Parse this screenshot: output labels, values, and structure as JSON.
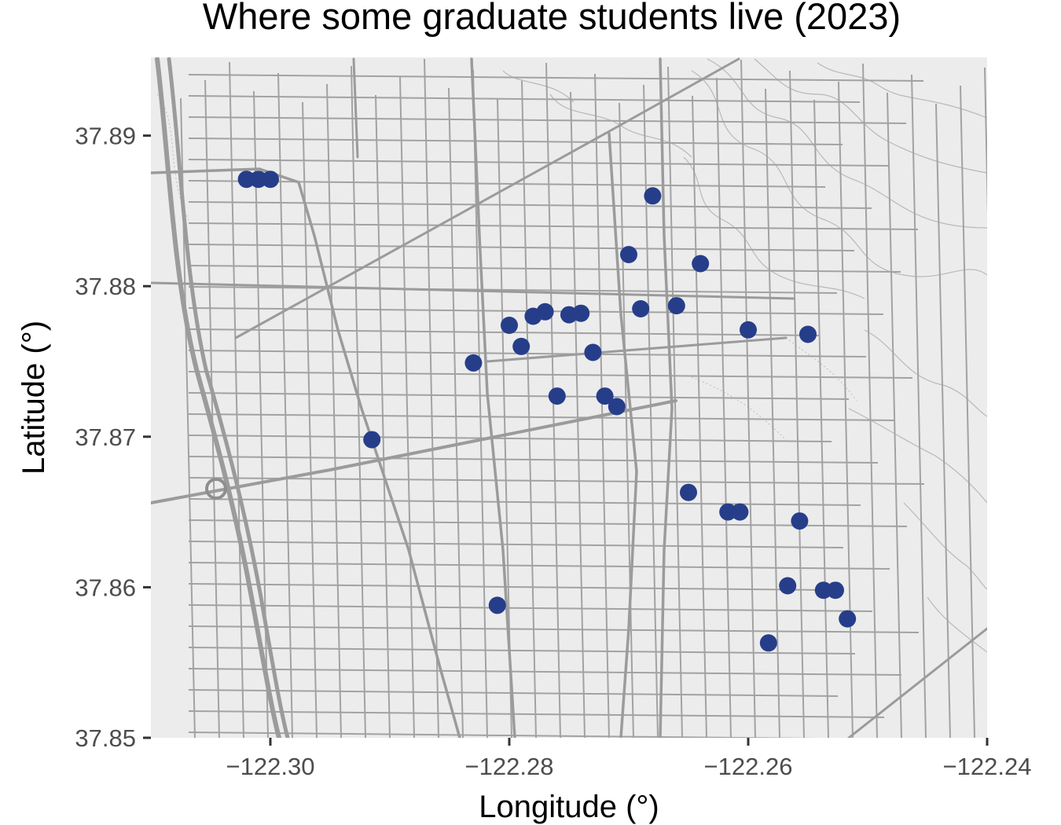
{
  "chart_data": {
    "type": "scatter",
    "title": "Where some graduate students live (2023)",
    "xlabel": "Longitude (°)",
    "ylabel": "Latitude (°)",
    "xlim": [
      -122.31,
      -122.24
    ],
    "ylim": [
      37.85,
      37.8952
    ],
    "x_ticks": [
      -122.3,
      -122.28,
      -122.26,
      -122.24
    ],
    "x_tick_labels": [
      "−122.30",
      "−122.28",
      "−122.26",
      "−122.24"
    ],
    "y_ticks": [
      37.85,
      37.86,
      37.87,
      37.88,
      37.89
    ],
    "y_tick_labels": [
      "37.85",
      "37.86",
      "37.87",
      "37.88",
      "37.89"
    ],
    "point_color": "#263e8a",
    "basemap": "street map (grey tiles)",
    "grid": false,
    "points": [
      {
        "x": -122.302,
        "y": 37.8871
      },
      {
        "x": -122.301,
        "y": 37.8871
      },
      {
        "x": -122.3,
        "y": 37.8871
      },
      {
        "x": -122.268,
        "y": 37.886
      },
      {
        "x": -122.27,
        "y": 37.8821
      },
      {
        "x": -122.264,
        "y": 37.8815
      },
      {
        "x": -122.278,
        "y": 37.878
      },
      {
        "x": -122.277,
        "y": 37.8783
      },
      {
        "x": -122.275,
        "y": 37.8781
      },
      {
        "x": -122.274,
        "y": 37.8782
      },
      {
        "x": -122.269,
        "y": 37.8785
      },
      {
        "x": -122.266,
        "y": 37.8787
      },
      {
        "x": -122.28,
        "y": 37.8774
      },
      {
        "x": -122.26,
        "y": 37.8771
      },
      {
        "x": -122.255,
        "y": 37.8768
      },
      {
        "x": -122.279,
        "y": 37.876
      },
      {
        "x": -122.273,
        "y": 37.8756
      },
      {
        "x": -122.283,
        "y": 37.8749
      },
      {
        "x": -122.276,
        "y": 37.8727
      },
      {
        "x": -122.272,
        "y": 37.8727
      },
      {
        "x": -122.271,
        "y": 37.872
      },
      {
        "x": -122.2915,
        "y": 37.8698
      },
      {
        "x": -122.265,
        "y": 37.8663
      },
      {
        "x": -122.2617,
        "y": 37.865
      },
      {
        "x": -122.2607,
        "y": 37.865
      },
      {
        "x": -122.2557,
        "y": 37.8644
      },
      {
        "x": -122.2567,
        "y": 37.8601
      },
      {
        "x": -122.2537,
        "y": 37.8598
      },
      {
        "x": -122.2527,
        "y": 37.8598
      },
      {
        "x": -122.2517,
        "y": 37.8579
      },
      {
        "x": -122.281,
        "y": 37.8588
      },
      {
        "x": -122.2583,
        "y": 37.8563
      }
    ]
  }
}
